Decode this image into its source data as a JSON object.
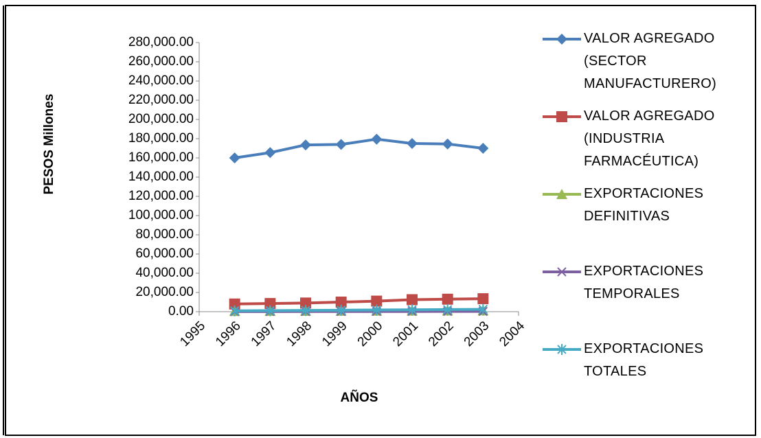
{
  "chart_data": {
    "type": "line",
    "y_label": "PESOS Millones",
    "x_label": "AÑOS",
    "x": [
      1996,
      1997,
      1998,
      1999,
      2000,
      2001,
      2002,
      2003
    ],
    "xlim": [
      1995,
      2004
    ],
    "xticks": [
      1995,
      1996,
      1997,
      1998,
      1999,
      2000,
      2001,
      2002,
      2003,
      2004
    ],
    "ylim": [
      0,
      280000
    ],
    "yticks": [
      {
        "value": 0,
        "label": "0.00"
      },
      {
        "value": 20000,
        "label": "20,000.00"
      },
      {
        "value": 40000,
        "label": "40,000.00"
      },
      {
        "value": 60000,
        "label": "60,000.00"
      },
      {
        "value": 80000,
        "label": "80,000.00"
      },
      {
        "value": 100000,
        "label": "100,000.00"
      },
      {
        "value": 120000,
        "label": "120,000.00"
      },
      {
        "value": 140000,
        "label": "140,000.00"
      },
      {
        "value": 160000,
        "label": "160,000.00"
      },
      {
        "value": 180000,
        "label": "180,000.00"
      },
      {
        "value": 200000,
        "label": "200,000.00"
      },
      {
        "value": 220000,
        "label": "220,000.00"
      },
      {
        "value": 240000,
        "label": "240,000.00"
      },
      {
        "value": 260000,
        "label": "260,000.00"
      },
      {
        "value": 280000,
        "label": "280,000.00"
      }
    ],
    "grid": false,
    "legend": "right",
    "series": [
      {
        "name": "VALOR AGREGADO (SECTOR MANUFACTURERO)",
        "color": "#4a7ebb",
        "marker": "diamond",
        "values": [
          160000,
          165500,
          173500,
          174000,
          179500,
          175000,
          174500,
          170000
        ]
      },
      {
        "name": "VALOR AGREGADO (INDUSTRIA FARMACÉUTICA)",
        "color": "#be4b48",
        "marker": "square",
        "values": [
          8000,
          8500,
          9000,
          10000,
          11000,
          12500,
          13000,
          13500
        ]
      },
      {
        "name": "EXPORTACIONES DEFINITIVAS",
        "color": "#98b954",
        "marker": "triangle",
        "values": [
          500,
          600,
          700,
          800,
          900,
          1000,
          1100,
          1200
        ]
      },
      {
        "name": "EXPORTACIONES TEMPORALES",
        "color": "#7d60a0",
        "marker": "x",
        "values": [
          100,
          120,
          150,
          180,
          200,
          220,
          250,
          280
        ]
      },
      {
        "name": "EXPORTACIONES TOTALES",
        "color": "#46aac5",
        "marker": "star",
        "values": [
          900,
          1100,
          1300,
          1500,
          1800,
          2000,
          2200,
          2400
        ]
      }
    ]
  }
}
